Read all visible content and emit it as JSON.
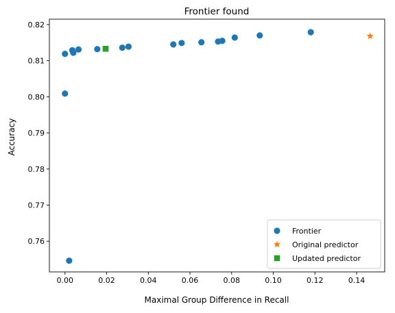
{
  "chart_data": {
    "type": "scatter",
    "title": "Frontier found",
    "xlabel": "Maximal Group Difference in Recall",
    "ylabel": "Accuracy",
    "xlim": [
      -0.0075,
      0.1535
    ],
    "ylim": [
      0.7515,
      0.8215
    ],
    "xticks": [
      0.0,
      0.02,
      0.04,
      0.06,
      0.08,
      0.1,
      0.12,
      0.14
    ],
    "xtick_labels": [
      "0.00",
      "0.02",
      "0.04",
      "0.06",
      "0.08",
      "0.10",
      "0.12",
      "0.14"
    ],
    "yticks": [
      0.76,
      0.77,
      0.78,
      0.79,
      0.8,
      0.81,
      0.82
    ],
    "ytick_labels": [
      "0.76",
      "0.77",
      "0.78",
      "0.79",
      "0.80",
      "0.81",
      "0.82"
    ],
    "grid": false,
    "legend_position": "lower-right",
    "series": [
      {
        "name": "Frontier",
        "marker": "circle",
        "color": "#1f77b4",
        "points": [
          [
            0.0,
            0.8009
          ],
          [
            0.0,
            0.8119
          ],
          [
            0.002,
            0.7546
          ],
          [
            0.0035,
            0.8129
          ],
          [
            0.004,
            0.8122
          ],
          [
            0.0065,
            0.8131
          ],
          [
            0.0155,
            0.8132
          ],
          [
            0.0275,
            0.8136
          ],
          [
            0.0305,
            0.8139
          ],
          [
            0.052,
            0.8145
          ],
          [
            0.056,
            0.8149
          ],
          [
            0.0655,
            0.8151
          ],
          [
            0.0735,
            0.8153
          ],
          [
            0.0755,
            0.8155
          ],
          [
            0.0815,
            0.8164
          ],
          [
            0.0935,
            0.817
          ],
          [
            0.118,
            0.8179
          ]
        ]
      },
      {
        "name": "Original predictor",
        "marker": "star",
        "color": "#ff7f0e",
        "points": [
          [
            0.1465,
            0.8168
          ]
        ]
      },
      {
        "name": "Updated predictor",
        "marker": "square",
        "color": "#2ca02c",
        "points": [
          [
            0.0195,
            0.8133
          ]
        ]
      }
    ]
  }
}
